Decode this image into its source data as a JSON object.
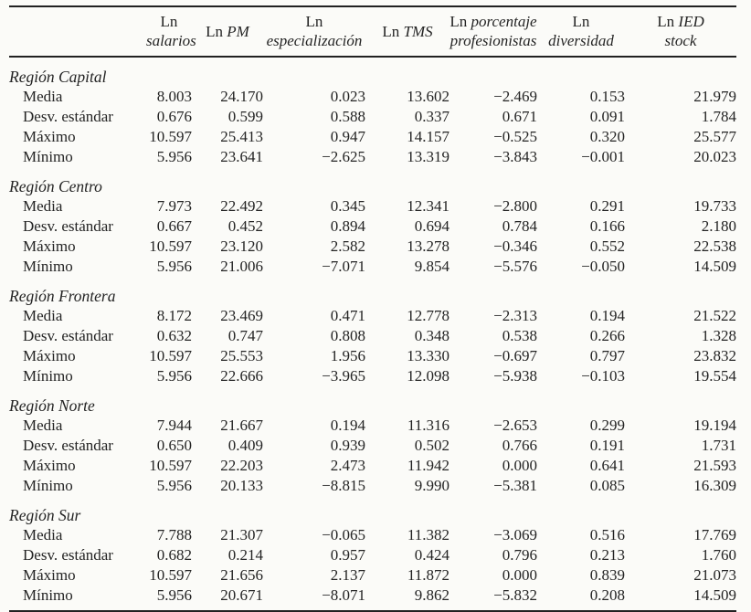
{
  "page": {
    "background": "#fbfbf8",
    "text_color": "#242424",
    "rule_color": "#212121"
  },
  "table": {
    "headers": [
      {
        "key": "ln-salarios",
        "lines": [
          [
            {
              "t": "Ln",
              "i": false
            }
          ],
          [
            {
              "t": "salarios",
              "i": true
            }
          ]
        ]
      },
      {
        "key": "ln-pm",
        "lines": [
          [
            {
              "t": "Ln ",
              "i": false
            },
            {
              "t": "PM",
              "i": true
            }
          ]
        ]
      },
      {
        "key": "ln-especializacion",
        "lines": [
          [
            {
              "t": "Ln",
              "i": false
            }
          ],
          [
            {
              "t": "especialización",
              "i": true
            }
          ]
        ]
      },
      {
        "key": "ln-tms",
        "lines": [
          [
            {
              "t": "Ln ",
              "i": false
            },
            {
              "t": "TMS",
              "i": true
            }
          ]
        ]
      },
      {
        "key": "ln-porcentaje-profesionistas",
        "lines": [
          [
            {
              "t": "Ln ",
              "i": false
            },
            {
              "t": "porcentaje",
              "i": true
            }
          ],
          [
            {
              "t": "profesionistas",
              "i": true
            }
          ]
        ]
      },
      {
        "key": "ln-diversidad",
        "lines": [
          [
            {
              "t": "Ln",
              "i": false
            }
          ],
          [
            {
              "t": "diversidad",
              "i": true
            }
          ]
        ]
      },
      {
        "key": "ln-ied-stock",
        "lines": [
          [
            {
              "t": "Ln ",
              "i": false
            },
            {
              "t": "IED",
              "i": true
            }
          ],
          [
            {
              "t": "stock",
              "i": true
            }
          ]
        ]
      }
    ],
    "sections": [
      {
        "region": "Región Capital",
        "rows": [
          {
            "label": "Media",
            "values": [
              "8.003",
              "24.170",
              "0.023",
              "13.602",
              "−2.469",
              "0.153",
              "21.979"
            ]
          },
          {
            "label": "Desv. estándar",
            "values": [
              "0.676",
              "0.599",
              "0.588",
              "0.337",
              "0.671",
              "0.091",
              "1.784"
            ]
          },
          {
            "label": "Máximo",
            "values": [
              "10.597",
              "25.413",
              "0.947",
              "14.157",
              "−0.525",
              "0.320",
              "25.577"
            ]
          },
          {
            "label": "Mínimo",
            "values": [
              "5.956",
              "23.641",
              "−2.625",
              "13.319",
              "−3.843",
              "−0.001",
              "20.023"
            ]
          }
        ]
      },
      {
        "region": "Región Centro",
        "rows": [
          {
            "label": "Media",
            "values": [
              "7.973",
              "22.492",
              "0.345",
              "12.341",
              "−2.800",
              "0.291",
              "19.733"
            ]
          },
          {
            "label": "Desv. estándar",
            "values": [
              "0.667",
              "0.452",
              "0.894",
              "0.694",
              "0.784",
              "0.166",
              "2.180"
            ]
          },
          {
            "label": "Máximo",
            "values": [
              "10.597",
              "23.120",
              "2.582",
              "13.278",
              "−0.346",
              "0.552",
              "22.538"
            ]
          },
          {
            "label": "Mínimo",
            "values": [
              "5.956",
              "21.006",
              "−7.071",
              "9.854",
              "−5.576",
              "−0.050",
              "14.509"
            ]
          }
        ]
      },
      {
        "region": "Región Frontera",
        "rows": [
          {
            "label": "Media",
            "values": [
              "8.172",
              "23.469",
              "0.471",
              "12.778",
              "−2.313",
              "0.194",
              "21.522"
            ]
          },
          {
            "label": "Desv. estándar",
            "values": [
              "0.632",
              "0.747",
              "0.808",
              "0.348",
              "0.538",
              "0.266",
              "1.328"
            ]
          },
          {
            "label": "Máximo",
            "values": [
              "10.597",
              "25.553",
              "1.956",
              "13.330",
              "−0.697",
              "0.797",
              "23.832"
            ]
          },
          {
            "label": "Mínimo",
            "values": [
              "5.956",
              "22.666",
              "−3.965",
              "12.098",
              "−5.938",
              "−0.103",
              "19.554"
            ]
          }
        ]
      },
      {
        "region": "Región Norte",
        "rows": [
          {
            "label": "Media",
            "values": [
              "7.944",
              "21.667",
              "0.194",
              "11.316",
              "−2.653",
              "0.299",
              "19.194"
            ]
          },
          {
            "label": "Desv. estándar",
            "values": [
              "0.650",
              "0.409",
              "0.939",
              "0.502",
              "0.766",
              "0.191",
              "1.731"
            ]
          },
          {
            "label": "Máximo",
            "values": [
              "10.597",
              "22.203",
              "2.473",
              "11.942",
              "0.000",
              "0.641",
              "21.593"
            ]
          },
          {
            "label": "Mínimo",
            "values": [
              "5.956",
              "20.133",
              "−8.815",
              "9.990",
              "−5.381",
              "0.085",
              "16.309"
            ]
          }
        ]
      },
      {
        "region": "Región Sur",
        "rows": [
          {
            "label": "Media",
            "values": [
              "7.788",
              "21.307",
              "−0.065",
              "11.382",
              "−3.069",
              "0.516",
              "17.769"
            ]
          },
          {
            "label": "Desv. estándar",
            "values": [
              "0.682",
              "0.214",
              "0.957",
              "0.424",
              "0.796",
              "0.213",
              "1.760"
            ]
          },
          {
            "label": "Máximo",
            "values": [
              "10.597",
              "21.656",
              "2.137",
              "11.872",
              "0.000",
              "0.839",
              "21.073"
            ]
          },
          {
            "label": "Mínimo",
            "values": [
              "5.956",
              "20.671",
              "−8.071",
              "9.862",
              "−5.832",
              "0.208",
              "14.509"
            ]
          }
        ]
      }
    ]
  }
}
